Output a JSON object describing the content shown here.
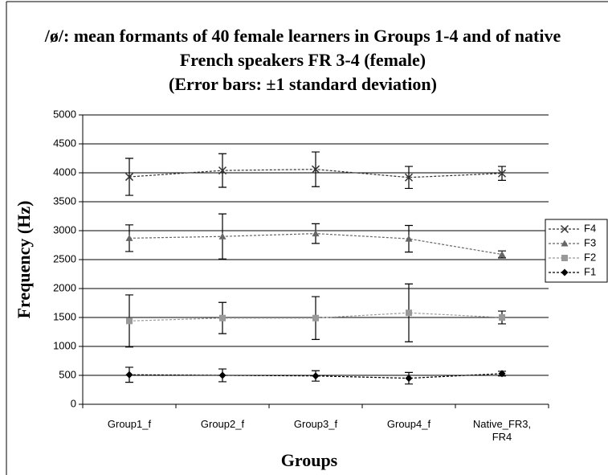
{
  "chart_data": {
    "type": "line",
    "title": "/ø/: mean formants of 40 female learners in Groups 1-4 and of native French speakers FR 3-4 (female)",
    "subtitle": "(Error bars: ±1 standard deviation)",
    "x_label": "Groups",
    "y_label": "Frequency (Hz)",
    "categories": [
      "Group1_f",
      "Group2_f",
      "Group3_f",
      "Group4_f",
      "Native_FR3, FR4"
    ],
    "ylim": [
      0,
      5000
    ],
    "yticks": [
      0,
      500,
      1000,
      1500,
      2000,
      2500,
      3000,
      3500,
      4000,
      4500,
      5000
    ],
    "grid": true,
    "legend": "right",
    "series": [
      {
        "name": "F4",
        "color": "#333333",
        "marker": "x",
        "values": [
          3930,
          4040,
          4060,
          3920,
          3990
        ],
        "errors": [
          320,
          290,
          300,
          190,
          120
        ]
      },
      {
        "name": "F3",
        "color": "#666666",
        "marker": "triangle",
        "values": [
          2870,
          2900,
          2950,
          2860,
          2590
        ],
        "errors": [
          230,
          390,
          170,
          230,
          60
        ]
      },
      {
        "name": "F2",
        "color": "#999999",
        "marker": "square",
        "values": [
          1440,
          1490,
          1490,
          1580,
          1500
        ],
        "errors": [
          450,
          270,
          370,
          500,
          110
        ]
      },
      {
        "name": "F1",
        "color": "#000000",
        "marker": "diamond",
        "values": [
          510,
          500,
          490,
          450,
          530
        ],
        "errors": [
          130,
          110,
          90,
          100,
          40
        ]
      }
    ]
  }
}
